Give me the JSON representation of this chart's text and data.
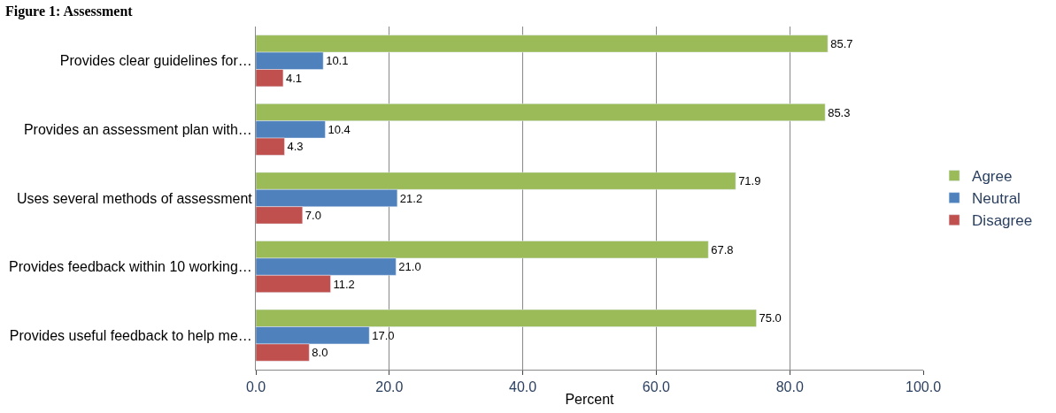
{
  "chart_data": {
    "type": "bar",
    "orientation": "horizontal",
    "title": "Figure 1: Assessment",
    "xlabel": "Percent",
    "categories": [
      "Provides clear guidelines for…",
      "Provides an assessment plan with…",
      "Uses several methods of assessment",
      "Provides feedback within 10 working…",
      "Provides useful feedback to help me…"
    ],
    "series": [
      {
        "name": "Agree",
        "color": "#9bbb59",
        "values": [
          85.7,
          85.3,
          71.9,
          67.8,
          75.0
        ],
        "value_labels": [
          "85.7",
          "85.3",
          "71.9",
          "67.8",
          "75.0"
        ]
      },
      {
        "name": "Neutral",
        "color": "#4f81bd",
        "values": [
          10.1,
          10.4,
          21.2,
          21.0,
          17.0
        ],
        "value_labels": [
          "10.1",
          "10.4",
          "21.2",
          "21.0",
          "17.0"
        ]
      },
      {
        "name": "Disagree",
        "color": "#c0504d",
        "values": [
          4.1,
          4.3,
          7.0,
          11.2,
          8.0
        ],
        "value_labels": [
          "4.1",
          "4.3",
          "7.0",
          "11.2",
          "8.0"
        ]
      }
    ],
    "xlim": [
      0,
      100
    ],
    "xticks": [
      {
        "value": 0,
        "label": "0.0"
      },
      {
        "value": 20,
        "label": "20.0"
      },
      {
        "value": 40,
        "label": "40.0"
      },
      {
        "value": 60,
        "label": "60.0"
      },
      {
        "value": 80,
        "label": "80.0"
      },
      {
        "value": 100,
        "label": "100.0"
      }
    ],
    "grid": "x",
    "legend": "right"
  }
}
